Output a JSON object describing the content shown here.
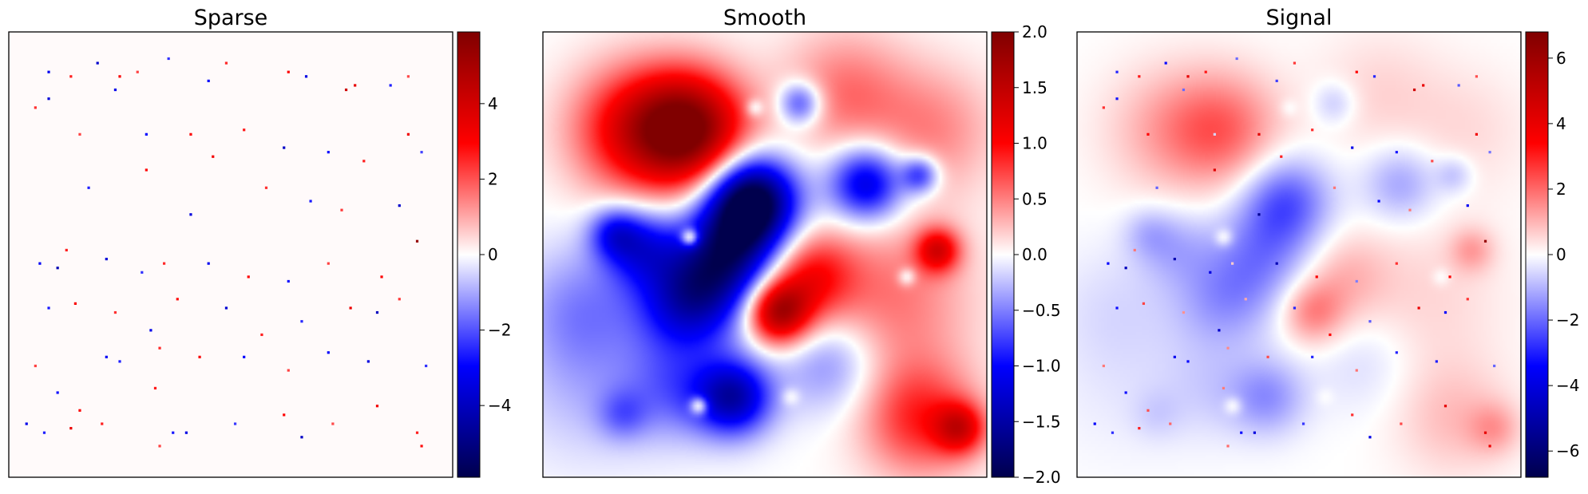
{
  "chart_data": [
    {
      "type": "heatmap",
      "title": "Sparse",
      "colormap": "seismic",
      "colorbar": {
        "range": [
          -5.9,
          5.9
        ],
        "ticks": [
          -4,
          -2,
          0,
          2,
          4
        ],
        "tick_labels": [
          "−4",
          "−2",
          "0",
          "2",
          "4"
        ]
      },
      "grid": false,
      "axes_ticks": false,
      "background_value": 0,
      "points": [
        {
          "x": 0.09,
          "y": 0.91,
          "v": -3.2
        },
        {
          "x": 0.14,
          "y": 0.9,
          "v": 2.6
        },
        {
          "x": 0.2,
          "y": 0.93,
          "v": -3.8
        },
        {
          "x": 0.25,
          "y": 0.9,
          "v": 3.1
        },
        {
          "x": 0.29,
          "y": 0.91,
          "v": 2.2
        },
        {
          "x": 0.36,
          "y": 0.94,
          "v": -2.4
        },
        {
          "x": 0.45,
          "y": 0.89,
          "v": -3.0
        },
        {
          "x": 0.49,
          "y": 0.93,
          "v": 2.5
        },
        {
          "x": 0.63,
          "y": 0.91,
          "v": 3.0
        },
        {
          "x": 0.67,
          "y": 0.9,
          "v": -3.4
        },
        {
          "x": 0.76,
          "y": 0.87,
          "v": 4.1
        },
        {
          "x": 0.78,
          "y": 0.88,
          "v": 3.5
        },
        {
          "x": 0.86,
          "y": 0.88,
          "v": -2.6
        },
        {
          "x": 0.9,
          "y": 0.9,
          "v": 2.1
        },
        {
          "x": 0.06,
          "y": 0.83,
          "v": 2.4
        },
        {
          "x": 0.09,
          "y": 0.85,
          "v": -3.6
        },
        {
          "x": 0.16,
          "y": 0.77,
          "v": 2.2
        },
        {
          "x": 0.24,
          "y": 0.87,
          "v": -3.3
        },
        {
          "x": 0.31,
          "y": 0.77,
          "v": -2.9
        },
        {
          "x": 0.41,
          "y": 0.77,
          "v": 3.0
        },
        {
          "x": 0.53,
          "y": 0.78,
          "v": 2.7
        },
        {
          "x": 0.62,
          "y": 0.74,
          "v": -3.9
        },
        {
          "x": 0.72,
          "y": 0.73,
          "v": -2.8
        },
        {
          "x": 0.8,
          "y": 0.71,
          "v": 2.6
        },
        {
          "x": 0.9,
          "y": 0.77,
          "v": 3.3
        },
        {
          "x": 0.93,
          "y": 0.73,
          "v": -2.2
        },
        {
          "x": 0.18,
          "y": 0.65,
          "v": -2.6
        },
        {
          "x": 0.31,
          "y": 0.69,
          "v": 2.9
        },
        {
          "x": 0.41,
          "y": 0.59,
          "v": -3.5
        },
        {
          "x": 0.46,
          "y": 0.72,
          "v": 3.2
        },
        {
          "x": 0.58,
          "y": 0.65,
          "v": 2.4
        },
        {
          "x": 0.68,
          "y": 0.62,
          "v": -2.7
        },
        {
          "x": 0.75,
          "y": 0.6,
          "v": 2.3
        },
        {
          "x": 0.88,
          "y": 0.61,
          "v": -3.8
        },
        {
          "x": 0.92,
          "y": 0.53,
          "v": 5.4
        },
        {
          "x": 0.07,
          "y": 0.48,
          "v": -3.1
        },
        {
          "x": 0.11,
          "y": 0.47,
          "v": -4.2
        },
        {
          "x": 0.13,
          "y": 0.51,
          "v": 2.6
        },
        {
          "x": 0.22,
          "y": 0.49,
          "v": -3.6
        },
        {
          "x": 0.3,
          "y": 0.46,
          "v": -2.4
        },
        {
          "x": 0.35,
          "y": 0.48,
          "v": 2.5
        },
        {
          "x": 0.45,
          "y": 0.48,
          "v": -3.2
        },
        {
          "x": 0.54,
          "y": 0.45,
          "v": 2.9
        },
        {
          "x": 0.63,
          "y": 0.44,
          "v": -2.8
        },
        {
          "x": 0.72,
          "y": 0.48,
          "v": 2.2
        },
        {
          "x": 0.84,
          "y": 0.45,
          "v": 3.0
        },
        {
          "x": 0.09,
          "y": 0.38,
          "v": -2.7
        },
        {
          "x": 0.15,
          "y": 0.39,
          "v": 3.1
        },
        {
          "x": 0.24,
          "y": 0.37,
          "v": 2.4
        },
        {
          "x": 0.32,
          "y": 0.33,
          "v": -3.3
        },
        {
          "x": 0.38,
          "y": 0.4,
          "v": 2.8
        },
        {
          "x": 0.49,
          "y": 0.38,
          "v": -3.7
        },
        {
          "x": 0.57,
          "y": 0.32,
          "v": 2.6
        },
        {
          "x": 0.66,
          "y": 0.35,
          "v": -2.5
        },
        {
          "x": 0.77,
          "y": 0.38,
          "v": 3.4
        },
        {
          "x": 0.83,
          "y": 0.37,
          "v": -4.0
        },
        {
          "x": 0.88,
          "y": 0.4,
          "v": 2.3
        },
        {
          "x": 0.22,
          "y": 0.27,
          "v": -3.1
        },
        {
          "x": 0.25,
          "y": 0.26,
          "v": -2.6
        },
        {
          "x": 0.34,
          "y": 0.29,
          "v": 2.5
        },
        {
          "x": 0.43,
          "y": 0.27,
          "v": 3.1
        },
        {
          "x": 0.53,
          "y": 0.27,
          "v": -2.9
        },
        {
          "x": 0.63,
          "y": 0.24,
          "v": 2.2
        },
        {
          "x": 0.72,
          "y": 0.28,
          "v": -3.0
        },
        {
          "x": 0.81,
          "y": 0.26,
          "v": -3.5
        },
        {
          "x": 0.94,
          "y": 0.25,
          "v": -2.4
        },
        {
          "x": 0.06,
          "y": 0.25,
          "v": 2.2
        },
        {
          "x": 0.11,
          "y": 0.19,
          "v": -2.8
        },
        {
          "x": 0.16,
          "y": 0.15,
          "v": 3.0
        },
        {
          "x": 0.21,
          "y": 0.12,
          "v": 2.6
        },
        {
          "x": 0.33,
          "y": 0.2,
          "v": 2.7
        },
        {
          "x": 0.4,
          "y": 0.1,
          "v": -3.4
        },
        {
          "x": 0.51,
          "y": 0.12,
          "v": -2.3
        },
        {
          "x": 0.62,
          "y": 0.14,
          "v": 2.9
        },
        {
          "x": 0.66,
          "y": 0.09,
          "v": -3.9
        },
        {
          "x": 0.73,
          "y": 0.12,
          "v": 2.1
        },
        {
          "x": 0.83,
          "y": 0.16,
          "v": 3.2
        },
        {
          "x": 0.92,
          "y": 0.1,
          "v": 2.6
        },
        {
          "x": 0.04,
          "y": 0.12,
          "v": -3.3
        },
        {
          "x": 0.08,
          "y": 0.1,
          "v": -2.6
        },
        {
          "x": 0.14,
          "y": 0.11,
          "v": 3.4
        },
        {
          "x": 0.34,
          "y": 0.07,
          "v": 2.2
        },
        {
          "x": 0.93,
          "y": 0.07,
          "v": 2.8
        },
        {
          "x": 0.37,
          "y": 0.1,
          "v": -2.7
        }
      ]
    },
    {
      "type": "heatmap",
      "title": "Smooth",
      "colormap": "seismic",
      "colorbar": {
        "range": [
          -2.0,
          2.0
        ],
        "ticks": [
          -2.0,
          -1.5,
          -1.0,
          -0.5,
          0.0,
          0.5,
          1.0,
          1.5,
          2.0
        ],
        "tick_labels": [
          "−2.0",
          "−1.5",
          "−1.0",
          "−0.5",
          "0.0",
          "0.5",
          "1.0",
          "1.5",
          "2.0"
        ]
      },
      "grid": false,
      "axes_ticks": false,
      "blobs": [
        {
          "x": 0.33,
          "y": 0.78,
          "sigma": 0.09,
          "amp": 1.9
        },
        {
          "x": 0.2,
          "y": 0.78,
          "sigma": 0.1,
          "amp": 1.0
        },
        {
          "x": 0.68,
          "y": 0.86,
          "sigma": 0.1,
          "amp": 0.55
        },
        {
          "x": 0.88,
          "y": 0.78,
          "sigma": 0.1,
          "amp": 0.45
        },
        {
          "x": 0.47,
          "y": 0.62,
          "sigma": 0.07,
          "amp": -2.2
        },
        {
          "x": 0.42,
          "y": 0.5,
          "sigma": 0.08,
          "amp": -1.4
        },
        {
          "x": 0.33,
          "y": 0.4,
          "sigma": 0.08,
          "amp": -1.3
        },
        {
          "x": 0.22,
          "y": 0.52,
          "sigma": 0.06,
          "amp": -0.9
        },
        {
          "x": 0.73,
          "y": 0.66,
          "sigma": 0.06,
          "amp": -1.3
        },
        {
          "x": 0.85,
          "y": 0.68,
          "sigma": 0.03,
          "amp": -0.9
        },
        {
          "x": 0.58,
          "y": 0.84,
          "sigma": 0.035,
          "amp": -0.9
        },
        {
          "x": 0.09,
          "y": 0.38,
          "sigma": 0.1,
          "amp": -0.45
        },
        {
          "x": 0.16,
          "y": 0.55,
          "sigma": 0.04,
          "amp": -0.7
        },
        {
          "x": 0.53,
          "y": 0.37,
          "sigma": 0.05,
          "amp": 1.6
        },
        {
          "x": 0.6,
          "y": 0.45,
          "sigma": 0.07,
          "amp": 0.9
        },
        {
          "x": 0.78,
          "y": 0.4,
          "sigma": 0.13,
          "amp": 0.55
        },
        {
          "x": 0.85,
          "y": 0.13,
          "sigma": 0.09,
          "amp": 0.85
        },
        {
          "x": 0.94,
          "y": 0.11,
          "sigma": 0.04,
          "amp": 1.0
        },
        {
          "x": 0.89,
          "y": 0.51,
          "sigma": 0.035,
          "amp": 1.1
        },
        {
          "x": 0.43,
          "y": 0.18,
          "sigma": 0.06,
          "amp": -1.4
        },
        {
          "x": 0.3,
          "y": 0.2,
          "sigma": 0.08,
          "amp": -0.55
        },
        {
          "x": 0.65,
          "y": 0.26,
          "sigma": 0.08,
          "amp": -0.55
        },
        {
          "x": 0.18,
          "y": 0.14,
          "sigma": 0.04,
          "amp": -0.4
        },
        {
          "x": 0.1,
          "y": 0.2,
          "sigma": 0.12,
          "amp": -0.25
        }
      ],
      "holes": [
        {
          "x": 0.48,
          "y": 0.83
        },
        {
          "x": 0.33,
          "y": 0.54
        },
        {
          "x": 0.82,
          "y": 0.45
        },
        {
          "x": 0.56,
          "y": 0.18
        },
        {
          "x": 0.35,
          "y": 0.16
        }
      ]
    },
    {
      "type": "heatmap",
      "title": "Signal",
      "colormap": "seismic",
      "colorbar": {
        "range": [
          -6.8,
          6.8
        ],
        "ticks": [
          -6,
          -4,
          -2,
          0,
          2,
          4,
          6
        ],
        "tick_labels": [
          "−6",
          "−4",
          "−2",
          "0",
          "2",
          "4",
          "6"
        ]
      },
      "grid": false,
      "axes_ticks": false,
      "composition": "Sparse + Smooth"
    }
  ]
}
